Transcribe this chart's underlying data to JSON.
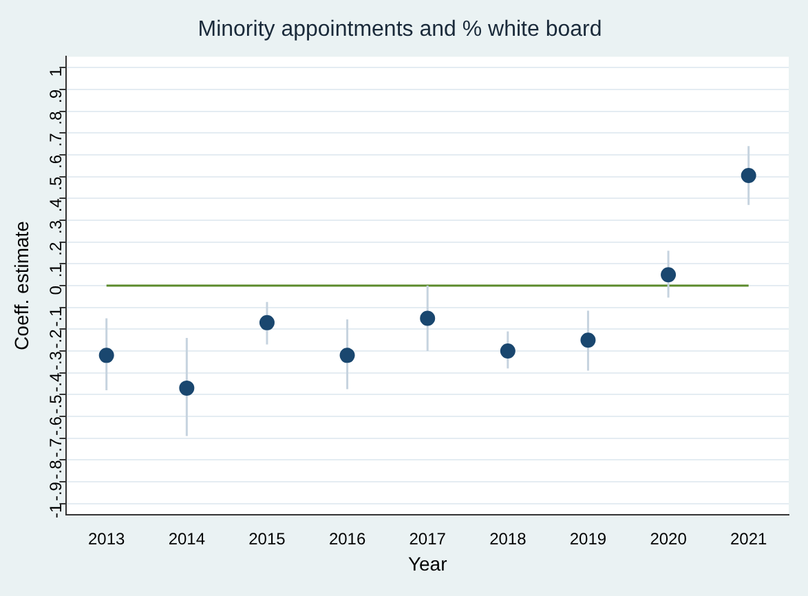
{
  "chart_data": {
    "type": "scatter",
    "title": "Minority appointments and % white board",
    "xlabel": "Year",
    "ylabel": "Coeff. estimate",
    "categories": [
      "2013",
      "2014",
      "2015",
      "2016",
      "2017",
      "2018",
      "2019",
      "2020",
      "2021"
    ],
    "values": [
      -0.32,
      -0.47,
      -0.17,
      -0.32,
      -0.15,
      -0.3,
      -0.25,
      0.05,
      0.505
    ],
    "errors": [
      [
        -0.48,
        -0.15
      ],
      [
        -0.69,
        -0.24
      ],
      [
        -0.27,
        -0.075
      ],
      [
        -0.475,
        -0.155
      ],
      [
        -0.3,
        0
      ],
      [
        -0.38,
        -0.21
      ],
      [
        -0.39,
        -0.115
      ],
      [
        -0.055,
        0.16
      ],
      [
        0.37,
        0.64
      ]
    ],
    "color": "#1a476f",
    "marker": "circle",
    "grid": "y",
    "legend": false,
    "ylim": [
      -1.05,
      1.05
    ],
    "yticks": [
      -1,
      {
        "value": -0.9,
        "label": "-.9"
      },
      {
        "value": -0.8,
        "label": "-.8"
      },
      {
        "value": -0.7,
        "label": "-.7"
      },
      {
        "value": -0.6,
        "label": "-.6"
      },
      {
        "value": -0.5,
        "label": "-.5"
      },
      {
        "value": -0.4,
        "label": "-.4"
      },
      {
        "value": -0.3,
        "label": "-.3"
      },
      {
        "value": -0.2,
        "label": "-.2"
      },
      {
        "value": -0.1,
        "label": "-.1"
      },
      0,
      {
        "value": 0.1,
        "label": ".1"
      },
      {
        "value": 0.2,
        "label": ".2"
      },
      {
        "value": 0.3,
        "label": ".3"
      },
      {
        "value": 0.4,
        "label": ".4"
      },
      {
        "value": 0.5,
        "label": ".5"
      },
      {
        "value": 0.6,
        "label": ".6"
      },
      {
        "value": 0.7,
        "label": ".7"
      },
      {
        "value": 0.8,
        "label": ".8"
      },
      {
        "value": 0.9,
        "label": ".9"
      },
      1
    ],
    "ref_lines": [
      {
        "axis": "y",
        "value": 0,
        "color": "#5b8a2b"
      }
    ]
  }
}
